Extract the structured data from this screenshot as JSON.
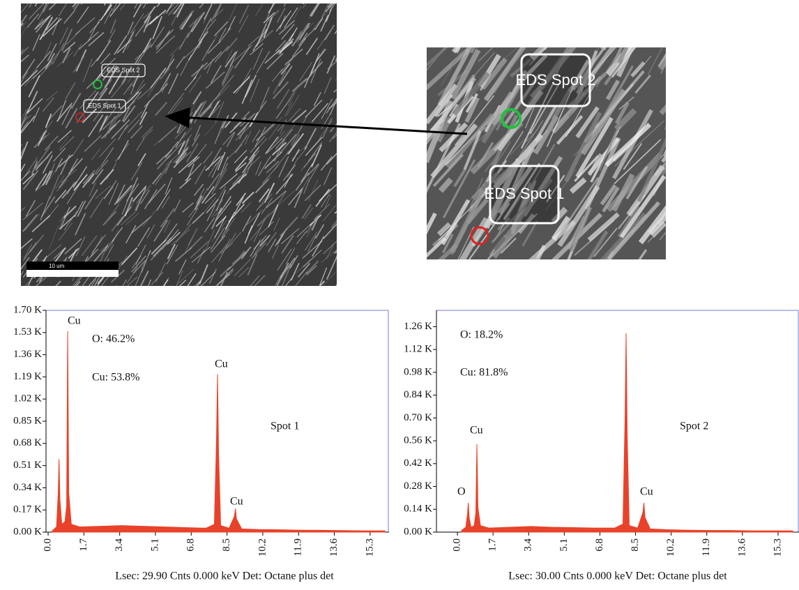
{
  "images": [
    {
      "labels": [
        "EDS Spot 2",
        "EDS Spot 1"
      ],
      "scale_bar": "10 um"
    },
    {
      "labels": [
        "EDS Spot 2",
        "EDS Spot 1"
      ]
    }
  ],
  "chart_data": [
    {
      "type": "area",
      "color": "#e8432a",
      "x": [
        0.2,
        0.4,
        0.48,
        0.52,
        0.56,
        0.65,
        0.8,
        0.88,
        0.93,
        0.98,
        1.1,
        1.5,
        2.5,
        3.5,
        4.5,
        5.5,
        6.5,
        7.5,
        7.9,
        8.0,
        8.05,
        8.1,
        8.2,
        8.6,
        8.85,
        8.9,
        8.95,
        9.2,
        10,
        11,
        12,
        13,
        14,
        15,
        16
      ],
      "values": [
        10,
        40,
        300,
        560,
        250,
        60,
        80,
        200,
        1540,
        300,
        60,
        40,
        45,
        50,
        45,
        40,
        35,
        30,
        60,
        700,
        1210,
        600,
        50,
        30,
        120,
        180,
        100,
        25,
        20,
        18,
        15,
        14,
        12,
        10,
        10
      ],
      "xlim": [
        -0.1,
        16.2
      ],
      "ylim": [
        0,
        1700
      ],
      "xticks": [
        {
          "value": 0,
          "label": "0.0"
        },
        1.7,
        3.4,
        5.1,
        6.8,
        8.5,
        10.2,
        11.9,
        13.6,
        15.3
      ],
      "yticks": [
        {
          "value": 0,
          "label": "0.00 K"
        },
        {
          "value": 170,
          "label": "0.17 K"
        },
        {
          "value": 340,
          "label": "0.34 K"
        },
        {
          "value": 510,
          "label": "0.51 K"
        },
        {
          "value": 680,
          "label": "0.68 K"
        },
        {
          "value": 850,
          "label": "0.85 K"
        },
        {
          "value": 1020,
          "label": "1.02 K"
        },
        {
          "value": 1190,
          "label": "1.19 K"
        },
        {
          "value": 1360,
          "label": "1.36 K"
        },
        {
          "value": 1530,
          "label": "1.53 K"
        },
        {
          "value": 1700,
          "label": "1.70 K"
        }
      ],
      "annotations": [
        "Cu",
        "O: 46.2%",
        "Cu: 53.8%",
        "Cu",
        "Cu",
        "Spot 1"
      ],
      "x_label": "Lsec: 29.90 Cnts 0.000 keV Det: Octane plus det"
    },
    {
      "type": "area",
      "color": "#e8432a",
      "x": [
        0.2,
        0.4,
        0.48,
        0.52,
        0.56,
        0.65,
        0.8,
        0.88,
        0.93,
        0.98,
        1.1,
        1.5,
        2.5,
        3.5,
        4.5,
        5.5,
        6.5,
        7.5,
        7.9,
        8.0,
        8.05,
        8.1,
        8.2,
        8.6,
        8.85,
        8.9,
        8.95,
        9.2,
        10,
        11,
        12,
        13,
        14,
        15,
        16
      ],
      "values": [
        10,
        30,
        110,
        180,
        90,
        30,
        40,
        120,
        540,
        150,
        40,
        25,
        30,
        35,
        30,
        28,
        25,
        25,
        50,
        700,
        1220,
        600,
        40,
        25,
        120,
        180,
        90,
        20,
        15,
        12,
        10,
        10,
        8,
        8,
        8
      ],
      "xlim": [
        -1.0,
        16.3
      ],
      "ylim": [
        0,
        1360
      ],
      "xticks": [
        {
          "value": 0,
          "label": "0.0"
        },
        1.7,
        3.4,
        5.1,
        6.8,
        8.5,
        10.2,
        11.9,
        13.6,
        15.3
      ],
      "yticks": [
        {
          "value": 0,
          "label": "0.00 K"
        },
        {
          "value": 140,
          "label": "0.14 K"
        },
        {
          "value": 280,
          "label": "0.28 K"
        },
        {
          "value": 420,
          "label": "0.42 K"
        },
        {
          "value": 560,
          "label": "0.56 K"
        },
        {
          "value": 700,
          "label": "0.70 K"
        },
        {
          "value": 840,
          "label": "0.84 K"
        },
        {
          "value": 980,
          "label": "0.98 K"
        },
        {
          "value": 1120,
          "label": "1.12 K"
        },
        {
          "value": 1260,
          "label": "1.26 K"
        }
      ],
      "annotations": [
        "O: 18.2%",
        "Cu: 81.8%",
        "Cu",
        "O",
        "Cu",
        "Spot 2"
      ],
      "x_label": "Lsec: 30.00 Cnts 0.000 keV Det: Octane plus det"
    }
  ]
}
